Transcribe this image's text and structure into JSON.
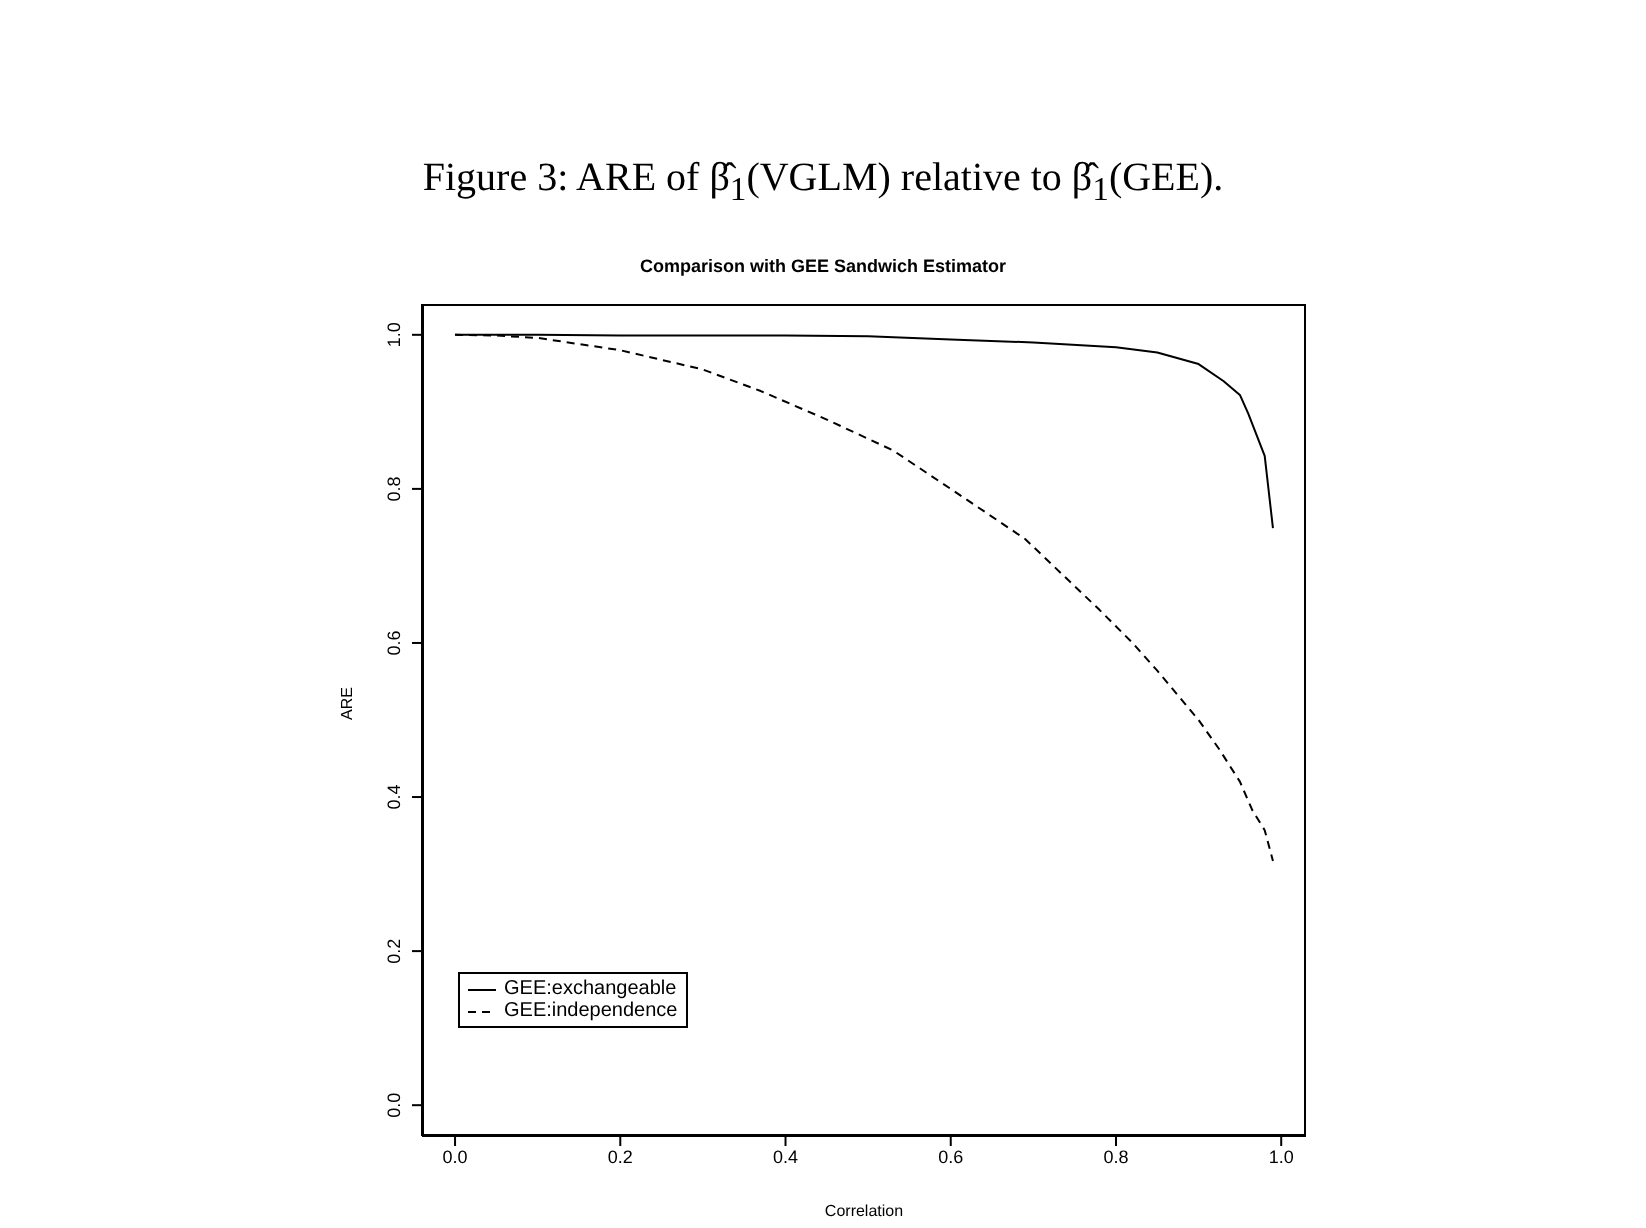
{
  "chart_data": {
    "type": "line",
    "title": "Figure 3: ARE of β̂$_{1}$(VGLM) relative to β̂$_{1}$(GEE).",
    "subtitle": "Comparison with GEE Sandwich Estimator",
    "xlabel": "Correlation",
    "ylabel": "ARE",
    "series": [
      {
        "name": "GEE:exchangeable",
        "color": "#000000",
        "line_style": "solid",
        "x": [
          0,
          0.1,
          0.2,
          0.3,
          0.4,
          0.5,
          0.6,
          0.7,
          0.8,
          0.85,
          0.9,
          0.93,
          0.95,
          0.96,
          0.98,
          0.99
        ],
        "values": [
          1.0,
          1.0,
          0.999,
          0.999,
          0.999,
          0.998,
          0.994,
          0.99,
          0.984,
          0.977,
          0.962,
          0.94,
          0.922,
          0.898,
          0.843,
          0.749
        ]
      },
      {
        "name": "GEE:independence",
        "color": "#000000",
        "line_style": "dashed",
        "x": [
          0,
          0.05,
          0.1,
          0.2,
          0.3,
          0.37,
          0.45,
          0.53,
          0.6,
          0.69,
          0.78,
          0.82,
          0.85,
          0.9,
          0.925,
          0.95,
          0.965,
          0.98,
          0.99
        ],
        "values": [
          1.0,
          0.999,
          0.996,
          0.98,
          0.955,
          0.927,
          0.89,
          0.85,
          0.8,
          0.735,
          0.643,
          0.6,
          0.564,
          0.5,
          0.462,
          0.42,
          0.383,
          0.357,
          0.317
        ]
      }
    ],
    "xlim": [
      -0.04,
      1.03
    ],
    "ylim": [
      -0.04,
      1.04
    ],
    "xticks": [
      {
        "value": 0,
        "label": "0.0"
      },
      {
        "value": 0.2,
        "label": "0.2"
      },
      {
        "value": 0.4,
        "label": "0.4"
      },
      {
        "value": 0.6,
        "label": "0.6"
      },
      {
        "value": 0.8,
        "label": "0.8"
      },
      {
        "value": 1,
        "label": "1.0"
      }
    ],
    "yticks": [
      {
        "value": 0,
        "label": "0.0"
      },
      {
        "value": 0.2,
        "label": "0.2"
      },
      {
        "value": 0.4,
        "label": "0.4"
      },
      {
        "value": 0.6,
        "label": "0.6"
      },
      {
        "value": 0.8,
        "label": "0.8"
      },
      {
        "value": 1,
        "label": "1.0"
      }
    ],
    "legend": "bottom left",
    "marker": "none",
    "grid": false
  }
}
